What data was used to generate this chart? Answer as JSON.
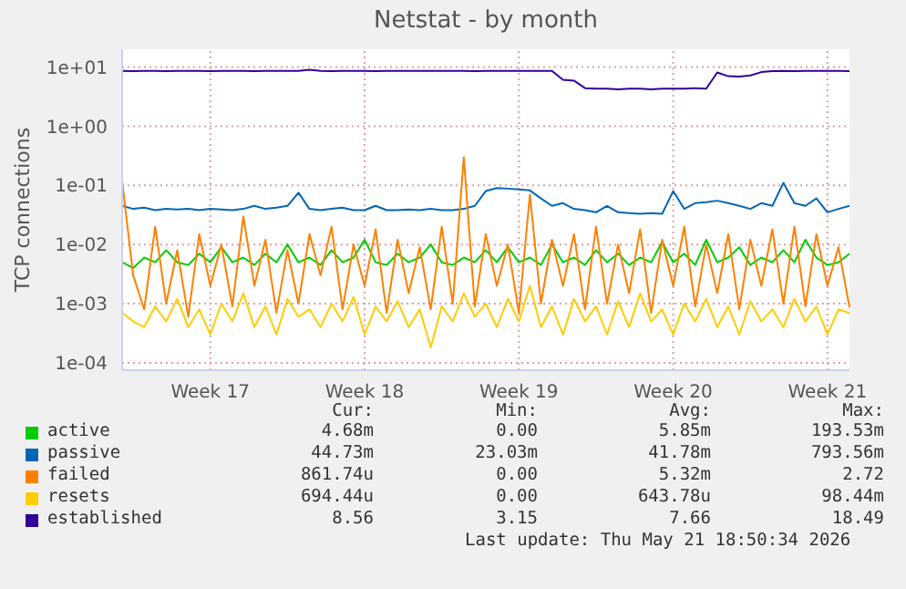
{
  "chart_data": {
    "type": "line",
    "title": "Netstat - by month",
    "ylabel": "TCP connections",
    "log": true,
    "grid": true,
    "legend": "bottom",
    "marker": "none",
    "line_style": "solid",
    "categories": [
      null,
      null,
      null,
      null,
      null,
      null,
      null,
      null,
      "Week 17",
      null,
      null,
      null,
      null,
      null,
      null,
      null,
      null,
      null,
      null,
      null,
      null,
      null,
      "Week 18",
      null,
      null,
      null,
      null,
      null,
      null,
      null,
      null,
      null,
      null,
      null,
      null,
      null,
      "Week 19",
      null,
      null,
      null,
      null,
      null,
      null,
      null,
      null,
      null,
      null,
      null,
      null,
      null,
      "Week 20",
      null,
      null,
      null,
      null,
      null,
      null,
      null,
      null,
      null,
      null,
      null,
      null,
      null,
      "Week 21",
      null,
      null
    ],
    "ylim": [
      7.5e-05,
      20
    ],
    "yticks": [
      {
        "value": 0.0001,
        "label": "1e-04"
      },
      {
        "value": 0.001,
        "label": "1e-03"
      },
      {
        "value": 0.01,
        "label": "1e-02"
      },
      {
        "value": 0.1,
        "label": "1e-01"
      },
      {
        "value": 1,
        "label": "1e+00"
      },
      {
        "value": 10,
        "label": "1e+01"
      }
    ],
    "series": [
      {
        "name": "active",
        "color": "#00cc00",
        "values": [
          0.005,
          0.004,
          0.006,
          0.005,
          0.008,
          0.005,
          0.0045,
          0.007,
          0.005,
          0.009,
          0.005,
          0.006,
          0.0045,
          0.007,
          0.005,
          0.01,
          0.005,
          0.006,
          0.0045,
          0.008,
          0.005,
          0.006,
          0.012,
          0.005,
          0.0045,
          0.007,
          0.005,
          0.006,
          0.01,
          0.005,
          0.0045,
          0.006,
          0.005,
          0.008,
          0.005,
          0.009,
          0.005,
          0.006,
          0.0045,
          0.01,
          0.005,
          0.006,
          0.0045,
          0.008,
          0.005,
          0.007,
          0.0045,
          0.006,
          0.005,
          0.011,
          0.005,
          0.007,
          0.0045,
          0.012,
          0.005,
          0.006,
          0.009,
          0.0045,
          0.006,
          0.005,
          0.008,
          0.005,
          0.012,
          0.006,
          0.0045,
          0.005,
          0.007
        ]
      },
      {
        "name": "passive",
        "color": "#0066b3",
        "values": [
          0.045,
          0.04,
          0.042,
          0.038,
          0.04,
          0.039,
          0.04,
          0.038,
          0.04,
          0.039,
          0.038,
          0.04,
          0.045,
          0.04,
          0.042,
          0.045,
          0.075,
          0.04,
          0.038,
          0.04,
          0.042,
          0.038,
          0.038,
          0.045,
          0.038,
          0.038,
          0.039,
          0.038,
          0.04,
          0.038,
          0.038,
          0.04,
          0.045,
          0.08,
          0.09,
          0.088,
          0.085,
          0.082,
          0.06,
          0.045,
          0.05,
          0.04,
          0.038,
          0.035,
          0.045,
          0.035,
          0.034,
          0.033,
          0.034,
          0.033,
          0.08,
          0.04,
          0.05,
          0.052,
          0.055,
          0.05,
          0.045,
          0.04,
          0.05,
          0.045,
          0.11,
          0.05,
          0.045,
          0.06,
          0.035,
          0.04,
          0.045
        ]
      },
      {
        "name": "failed",
        "color": "#ff8000",
        "values": [
          0.12,
          0.003,
          0.0008,
          0.02,
          0.001,
          0.008,
          0.0006,
          0.015,
          0.002,
          0.01,
          0.0009,
          0.03,
          0.002,
          0.012,
          0.0007,
          0.008,
          0.001,
          0.015,
          0.003,
          0.02,
          0.0008,
          0.01,
          0.002,
          0.018,
          0.0007,
          0.012,
          0.0015,
          0.009,
          0.0008,
          0.02,
          0.001,
          0.3,
          0.0009,
          0.015,
          0.002,
          0.01,
          0.0007,
          0.07,
          0.001,
          0.012,
          0.002,
          0.015,
          0.0008,
          0.02,
          0.001,
          0.01,
          0.0015,
          0.018,
          0.0007,
          0.012,
          0.002,
          0.02,
          0.0009,
          0.01,
          0.0015,
          0.015,
          0.0008,
          0.012,
          0.002,
          0.018,
          0.001,
          0.02,
          0.0009,
          0.015,
          0.002,
          0.009,
          0.00086
        ]
      },
      {
        "name": "resets",
        "color": "#ffcc00",
        "values": [
          0.0007,
          0.0005,
          0.0004,
          0.0009,
          0.0005,
          0.0012,
          0.0004,
          0.0008,
          0.0003,
          0.001,
          0.0005,
          0.0015,
          0.0004,
          0.0009,
          0.0003,
          0.0012,
          0.0006,
          0.0008,
          0.0004,
          0.001,
          0.0005,
          0.0013,
          0.0003,
          0.0009,
          0.0005,
          0.0011,
          0.0004,
          0.0008,
          0.00018,
          0.0009,
          0.0005,
          0.0015,
          0.0006,
          0.001,
          0.0004,
          0.0012,
          0.0005,
          0.002,
          0.0004,
          0.0009,
          0.0003,
          0.0012,
          0.0005,
          0.0009,
          0.0003,
          0.0011,
          0.0004,
          0.0015,
          0.0005,
          0.0008,
          0.0003,
          0.001,
          0.0005,
          0.0012,
          0.0004,
          0.0009,
          0.0003,
          0.0011,
          0.0005,
          0.0008,
          0.0004,
          0.0012,
          0.0005,
          0.0009,
          0.0003,
          0.0008,
          0.00069
        ]
      },
      {
        "name": "established",
        "color": "#330099",
        "values": [
          8.6,
          8.5,
          8.6,
          8.6,
          8.5,
          8.6,
          8.6,
          8.6,
          8.5,
          8.6,
          8.6,
          8.6,
          8.5,
          8.6,
          8.6,
          8.6,
          8.6,
          9.0,
          8.6,
          8.5,
          8.6,
          8.6,
          8.6,
          8.5,
          8.6,
          8.6,
          8.6,
          8.6,
          8.6,
          8.6,
          8.6,
          8.6,
          8.5,
          8.6,
          8.6,
          8.6,
          8.6,
          8.6,
          8.6,
          8.6,
          6.1,
          5.9,
          4.4,
          4.3,
          4.3,
          4.2,
          4.3,
          4.3,
          4.2,
          4.3,
          4.3,
          4.3,
          4.4,
          4.3,
          8.1,
          7.0,
          6.9,
          7.2,
          8.2,
          8.5,
          8.6,
          8.5,
          8.6,
          8.6,
          8.6,
          8.6,
          8.56
        ]
      }
    ],
    "annotations": [
      "Cur:",
      "Min:",
      "Avg:",
      "Max:",
      "4.68m",
      "0.00",
      "5.85m",
      "193.53m",
      "44.73m",
      "23.03m",
      "41.78m",
      "793.56m",
      "861.74u",
      "0.00",
      "5.32m",
      "2.72",
      "694.44u",
      "0.00",
      "643.78u",
      "98.44m",
      "8.56",
      "3.15",
      "7.66",
      "18.49",
      "Last update: Thu May 21 18:50:34 2026"
    ]
  }
}
